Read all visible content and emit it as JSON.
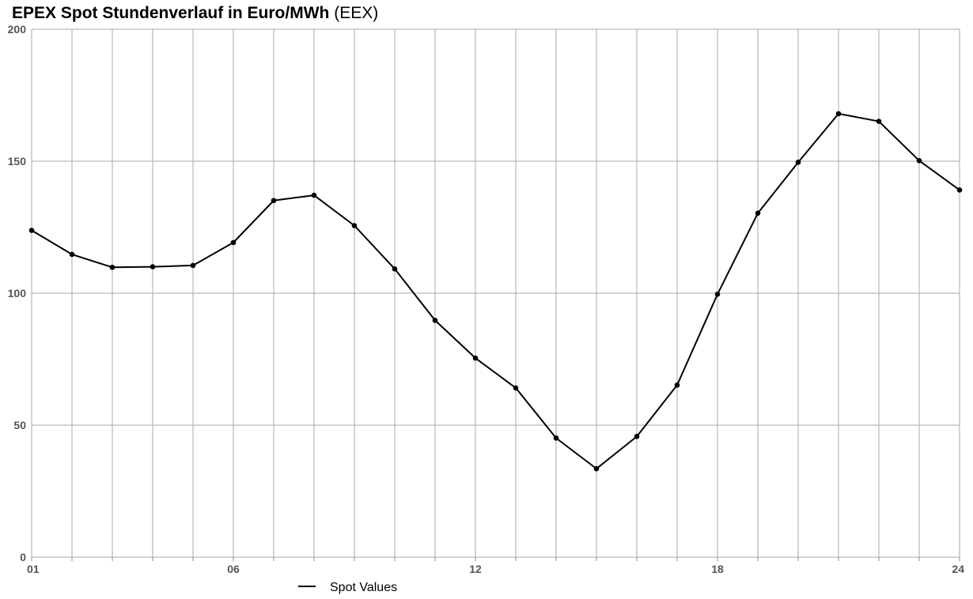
{
  "header": {
    "title_main": "EPEX Spot Stundenverlauf in Euro/MWh",
    "title_source": "(EEX)"
  },
  "colors": {
    "line": "#000000",
    "grid": "#aaaaaa",
    "axis": "#888888",
    "tick_text": "#555555"
  },
  "chart_data": {
    "type": "line",
    "title": "EPEX Spot Stundenverlauf in Euro/MWh (EEX)",
    "xlabel": "",
    "ylabel": "",
    "x": [
      1,
      2,
      3,
      4,
      5,
      6,
      7,
      8,
      9,
      10,
      11,
      12,
      13,
      14,
      15,
      16,
      17,
      18,
      19,
      20,
      21,
      22,
      23,
      24
    ],
    "xlim": [
      1,
      24
    ],
    "x_tick_values": [
      1,
      6,
      12,
      18,
      24
    ],
    "x_tick_labels": [
      "01",
      "06",
      "12",
      "18",
      "24"
    ],
    "ylim": [
      0,
      200
    ],
    "y_ticks": [
      0,
      50,
      100,
      150,
      200
    ],
    "grid": true,
    "legend": "bottom-center",
    "series": [
      {
        "name": "Spot Values",
        "values": [
          123.8,
          114.7,
          109.8,
          110.0,
          110.5,
          119.2,
          135.1,
          137.1,
          125.6,
          109.2,
          89.7,
          75.4,
          64.1,
          45.1,
          33.5,
          45.7,
          65.2,
          99.6,
          130.3,
          149.6,
          168.0,
          165.1,
          150.2,
          139.1
        ]
      }
    ]
  }
}
